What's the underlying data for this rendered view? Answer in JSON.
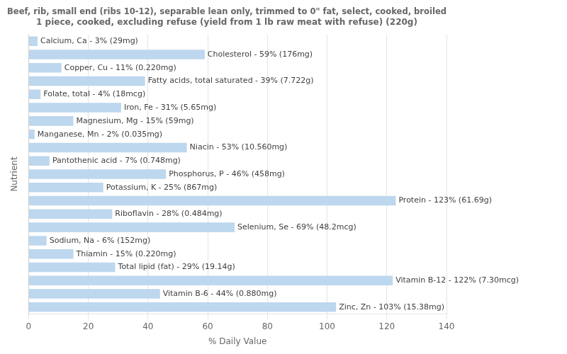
{
  "chart_data": {
    "type": "bar",
    "orientation": "horizontal",
    "title": "Beef, rib, small end (ribs 10-12), separable lean only, trimmed to 0\" fat, select, cooked, broiled\n1 piece, cooked, excluding refuse (yield from 1 lb raw meat with refuse) (220g)",
    "xlabel": "% Daily Value",
    "ylabel": "Nutrient",
    "categories": [
      "Calcium, Ca - 3% (29mg)",
      "Cholesterol - 59% (176mg)",
      "Copper, Cu - 11% (0.220mg)",
      "Fatty acids, total saturated - 39% (7.722g)",
      "Folate, total - 4% (18mcg)",
      "Iron, Fe - 31% (5.65mg)",
      "Magnesium, Mg - 15% (59mg)",
      "Manganese, Mn - 2% (0.035mg)",
      "Niacin - 53% (10.560mg)",
      "Pantothenic acid - 7% (0.748mg)",
      "Phosphorus, P - 46% (458mg)",
      "Potassium, K - 25% (867mg)",
      "Protein - 123% (61.69g)",
      "Riboflavin - 28% (0.484mg)",
      "Selenium, Se - 69% (48.2mcg)",
      "Sodium, Na - 6% (152mg)",
      "Thiamin - 15% (0.220mg)",
      "Total lipid (fat) - 29% (19.14g)",
      "Vitamin B-12 - 122% (7.30mcg)",
      "Vitamin B-6 - 44% (0.880mg)",
      "Zinc, Zn - 103% (15.38mg)"
    ],
    "values": [
      3,
      59,
      11,
      39,
      4,
      31,
      15,
      2,
      53,
      7,
      46,
      25,
      123,
      28,
      69,
      6,
      15,
      29,
      122,
      44,
      103
    ],
    "color": "#bdd7ee",
    "xlim": [
      0,
      140
    ],
    "xticks": [
      0,
      20,
      40,
      60,
      80,
      100,
      120,
      140
    ],
    "grid": true,
    "tick_labels": "x"
  }
}
